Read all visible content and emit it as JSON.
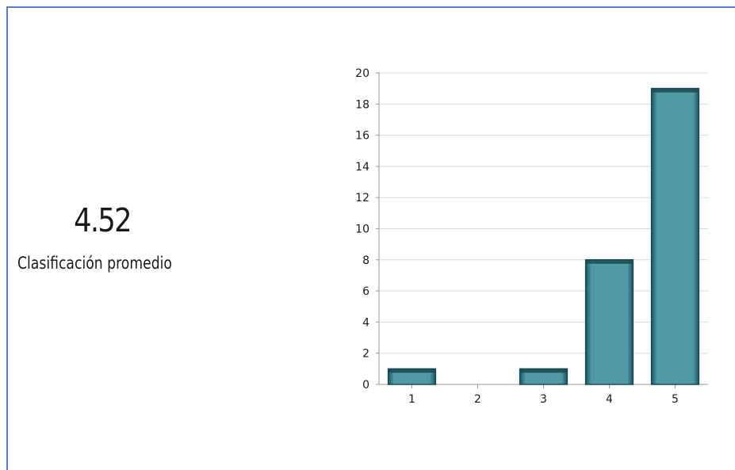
{
  "summary": {
    "value": "4.52",
    "label": "Clasificación promedio"
  },
  "colors": {
    "frame_border": "#5b7fc4",
    "bar_fill": "#4f9aa3",
    "bar_edge": "#174a55",
    "gridline": "#d9d9d9"
  },
  "chart_data": {
    "type": "bar",
    "categories": [
      "1",
      "2",
      "3",
      "4",
      "5"
    ],
    "values": [
      1,
      0,
      1,
      8,
      19
    ],
    "ylim": [
      0,
      20
    ],
    "yticks": [
      0,
      2,
      4,
      6,
      8,
      10,
      12,
      14,
      16,
      18,
      20
    ],
    "grid": true,
    "title": "",
    "xlabel": "",
    "ylabel": ""
  }
}
